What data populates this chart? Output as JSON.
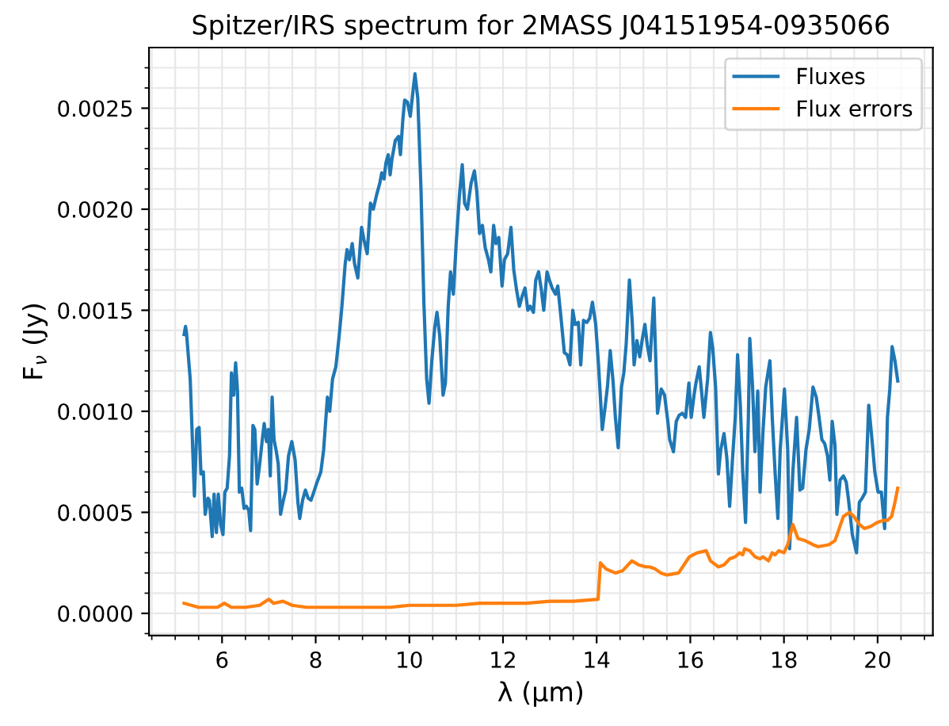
{
  "chart_data": {
    "type": "line",
    "title": "Spitzer/IRS spectrum for 2MASS J04151954-0935066",
    "xlabel": "λ (μm)",
    "ylabel": "F$_{ν}$ (Jy)",
    "xlim": [
      4.44,
      21.18
    ],
    "ylim": [
      -0.00011,
      0.0028
    ],
    "xticks": [
      {
        "value": 4.5,
        "label": null
      },
      {
        "value": 5,
        "label": null
      },
      {
        "value": 5.5,
        "label": null
      },
      6,
      {
        "value": 6.5,
        "label": null
      },
      {
        "value": 7,
        "label": null
      },
      {
        "value": 7.5,
        "label": null
      },
      8,
      {
        "value": 8.5,
        "label": null
      },
      {
        "value": 9,
        "label": null
      },
      {
        "value": 9.5,
        "label": null
      },
      10,
      {
        "value": 10.5,
        "label": null
      },
      {
        "value": 11,
        "label": null
      },
      {
        "value": 11.5,
        "label": null
      },
      12,
      {
        "value": 12.5,
        "label": null
      },
      {
        "value": 13,
        "label": null
      },
      {
        "value": 13.5,
        "label": null
      },
      14,
      {
        "value": 14.5,
        "label": null
      },
      {
        "value": 15,
        "label": null
      },
      {
        "value": 15.5,
        "label": null
      },
      16,
      {
        "value": 16.5,
        "label": null
      },
      {
        "value": 17,
        "label": null
      },
      {
        "value": 17.5,
        "label": null
      },
      18,
      {
        "value": 18.5,
        "label": null
      },
      {
        "value": 19,
        "label": null
      },
      {
        "value": 19.5,
        "label": null
      },
      20,
      {
        "value": 20.5,
        "label": null
      },
      {
        "value": 21,
        "label": null
      }
    ],
    "yticks": [
      {
        "value": -0.0001,
        "label": null
      },
      {
        "value": 0,
        "label": "0.0000"
      },
      {
        "value": 0.0001,
        "label": null
      },
      {
        "value": 0.0002,
        "label": null
      },
      {
        "value": 0.0003,
        "label": null
      },
      {
        "value": 0.0004,
        "label": null
      },
      {
        "value": 0.0005,
        "label": "0.0005"
      },
      {
        "value": 0.0006,
        "label": null
      },
      {
        "value": 0.0007,
        "label": null
      },
      {
        "value": 0.0008,
        "label": null
      },
      {
        "value": 0.0009,
        "label": null
      },
      {
        "value": 0.001,
        "label": "0.0010"
      },
      {
        "value": 0.0011,
        "label": null
      },
      {
        "value": 0.0012,
        "label": null
      },
      {
        "value": 0.0013,
        "label": null
      },
      {
        "value": 0.0014,
        "label": null
      },
      {
        "value": 0.0015,
        "label": "0.0015"
      },
      {
        "value": 0.0016,
        "label": null
      },
      {
        "value": 0.0017,
        "label": null
      },
      {
        "value": 0.0018,
        "label": null
      },
      {
        "value": 0.0019,
        "label": null
      },
      {
        "value": 0.002,
        "label": "0.0020"
      },
      {
        "value": 0.0021,
        "label": null
      },
      {
        "value": 0.0022,
        "label": null
      },
      {
        "value": 0.0023,
        "label": null
      },
      {
        "value": 0.0024,
        "label": null
      },
      {
        "value": 0.0025,
        "label": "0.0025"
      },
      {
        "value": 0.0026,
        "label": null
      },
      {
        "value": 0.0027,
        "label": null
      }
    ],
    "grid": true,
    "legend": "top right",
    "line_style": "solid",
    "series": [
      {
        "name": "Fluxes",
        "color": "#1f77b4",
        "x": [
          5.19,
          5.22,
          5.24,
          5.32,
          5.41,
          5.46,
          5.51,
          5.55,
          5.6,
          5.64,
          5.7,
          5.73,
          5.79,
          5.83,
          5.88,
          5.92,
          5.97,
          6.02,
          6.06,
          6.11,
          6.16,
          6.2,
          6.25,
          6.29,
          6.33,
          6.37,
          6.42,
          6.47,
          6.52,
          6.57,
          6.61,
          6.66,
          6.7,
          6.75,
          6.8,
          6.86,
          6.9,
          6.95,
          6.99,
          7.03,
          7.07,
          7.11,
          7.16,
          7.2,
          7.25,
          7.3,
          7.36,
          7.42,
          7.49,
          7.56,
          7.62,
          7.66,
          7.72,
          7.78,
          7.84,
          7.9,
          7.96,
          8.03,
          8.11,
          8.17,
          8.25,
          8.3,
          8.36,
          8.43,
          8.5,
          8.56,
          8.63,
          8.67,
          8.72,
          8.78,
          8.83,
          8.9,
          8.98,
          9.03,
          9.1,
          9.17,
          9.23,
          9.3,
          9.37,
          9.41,
          9.46,
          9.5,
          9.55,
          9.59,
          9.63,
          9.7,
          9.77,
          9.81,
          9.86,
          9.9,
          9.96,
          10.02,
          10.09,
          10.12,
          10.18,
          10.25,
          10.31,
          10.37,
          10.42,
          10.48,
          10.54,
          10.59,
          10.65,
          10.72,
          10.77,
          10.83,
          10.88,
          10.94,
          11.0,
          11.07,
          11.13,
          11.18,
          11.24,
          11.32,
          11.39,
          11.44,
          11.5,
          11.56,
          11.62,
          11.69,
          11.74,
          11.8,
          11.85,
          11.91,
          11.98,
          12.03,
          12.1,
          12.17,
          12.23,
          12.29,
          12.35,
          12.41,
          12.47,
          12.53,
          12.58,
          12.65,
          12.7,
          12.76,
          12.82,
          12.87,
          12.94,
          12.99,
          13.05,
          13.12,
          13.17,
          13.24,
          13.31,
          13.37,
          13.43,
          13.49,
          13.54,
          13.61,
          13.66,
          13.72,
          13.79,
          13.85,
          13.91,
          13.98,
          14.04,
          14.12,
          14.18,
          14.23,
          14.29,
          14.35,
          14.4,
          14.46,
          14.53,
          14.58,
          14.63,
          14.7,
          14.76,
          14.8,
          14.86,
          14.92,
          14.97,
          15.03,
          15.08,
          15.14,
          15.22,
          15.3,
          15.38,
          15.45,
          15.52,
          15.56,
          15.64,
          15.7,
          15.76,
          15.83,
          15.9,
          15.97,
          16.02,
          16.08,
          16.12,
          16.19,
          16.24,
          16.29,
          16.37,
          16.43,
          16.48,
          16.54,
          16.6,
          16.65,
          16.72,
          16.78,
          16.84,
          16.9,
          16.96,
          17.01,
          17.07,
          17.12,
          17.18,
          17.24,
          17.27,
          17.33,
          17.38,
          17.44,
          17.49,
          17.55,
          17.61,
          17.7,
          17.75,
          17.81,
          17.87,
          17.92,
          18.01,
          18.08,
          18.12,
          18.19,
          18.27,
          18.34,
          18.4,
          18.47,
          18.54,
          18.62,
          18.69,
          18.75,
          18.81,
          18.87,
          18.93,
          18.98,
          19.03,
          19.09,
          19.13,
          19.2,
          19.27,
          19.33,
          19.38,
          19.46,
          19.55,
          19.61,
          19.67,
          19.74,
          19.81,
          19.88,
          19.94,
          20.01,
          20.08,
          20.15,
          20.21,
          20.26,
          20.31,
          20.37,
          20.43
        ],
        "values": [
          0.00138,
          0.00142,
          0.00139,
          0.00116,
          0.00058,
          0.00091,
          0.00092,
          0.00069,
          0.0007,
          0.00049,
          0.00057,
          0.00056,
          0.00038,
          0.00059,
          0.0004,
          0.00059,
          0.00044,
          0.00039,
          0.0006,
          0.00062,
          0.00078,
          0.00119,
          0.00108,
          0.00124,
          0.0011,
          0.0006,
          0.00062,
          0.00052,
          0.00053,
          0.00051,
          0.00041,
          0.00093,
          0.00091,
          0.00064,
          0.00073,
          0.00086,
          0.00094,
          0.00085,
          0.00091,
          0.00068,
          0.00107,
          0.00086,
          0.0008,
          0.00074,
          0.00049,
          0.00055,
          0.00061,
          0.00078,
          0.00085,
          0.00076,
          0.00055,
          0.00047,
          0.00056,
          0.00061,
          0.00057,
          0.00056,
          0.0006,
          0.00065,
          0.0007,
          0.00081,
          0.00107,
          0.001,
          0.00116,
          0.00122,
          0.00137,
          0.00152,
          0.00173,
          0.0018,
          0.00175,
          0.00183,
          0.00173,
          0.00166,
          0.00191,
          0.00185,
          0.00178,
          0.00203,
          0.002,
          0.00207,
          0.00213,
          0.00218,
          0.00215,
          0.00223,
          0.00227,
          0.00217,
          0.00225,
          0.00234,
          0.00236,
          0.00227,
          0.00244,
          0.00254,
          0.00253,
          0.00246,
          0.00261,
          0.00267,
          0.00255,
          0.00209,
          0.00154,
          0.00116,
          0.00104,
          0.00125,
          0.00141,
          0.00149,
          0.00137,
          0.00108,
          0.00114,
          0.00152,
          0.00169,
          0.00158,
          0.00183,
          0.00207,
          0.00222,
          0.00203,
          0.002,
          0.00213,
          0.00219,
          0.00209,
          0.00188,
          0.00192,
          0.00181,
          0.00175,
          0.00169,
          0.00192,
          0.00183,
          0.00186,
          0.00162,
          0.00175,
          0.00178,
          0.00191,
          0.0017,
          0.0016,
          0.00152,
          0.00157,
          0.00161,
          0.0015,
          0.00152,
          0.00149,
          0.00165,
          0.00169,
          0.0016,
          0.0015,
          0.00169,
          0.00165,
          0.00161,
          0.00158,
          0.00162,
          0.00146,
          0.00129,
          0.00128,
          0.00123,
          0.0015,
          0.00143,
          0.00144,
          0.00123,
          0.00145,
          0.00144,
          0.00146,
          0.00154,
          0.00143,
          0.00123,
          0.00091,
          0.00102,
          0.00112,
          0.0013,
          0.00115,
          0.00097,
          0.00082,
          0.00112,
          0.00119,
          0.00133,
          0.00165,
          0.00144,
          0.00123,
          0.00135,
          0.00127,
          0.00135,
          0.00143,
          0.00133,
          0.00125,
          0.00156,
          0.00099,
          0.00111,
          0.00108,
          0.00095,
          0.00086,
          0.0008,
          0.00095,
          0.00098,
          0.00099,
          0.00097,
          0.00114,
          0.00097,
          0.00108,
          0.00114,
          0.00122,
          0.0011,
          0.00097,
          0.00116,
          0.00139,
          0.00131,
          0.00112,
          0.00069,
          0.00081,
          0.00089,
          0.00077,
          0.00053,
          0.00076,
          0.00097,
          0.00128,
          0.00102,
          0.0007,
          0.00045,
          0.00097,
          0.00136,
          0.00112,
          0.0008,
          0.0011,
          0.0006,
          0.00089,
          0.00112,
          0.00125,
          0.00097,
          0.0007,
          0.00047,
          0.00081,
          0.00111,
          0.00081,
          0.00032,
          0.0007,
          0.00097,
          0.00061,
          0.00062,
          0.00081,
          0.00091,
          0.00112,
          0.00107,
          0.00097,
          0.00086,
          0.00084,
          0.00078,
          0.00066,
          0.00095,
          0.00083,
          0.00049,
          0.00066,
          0.00068,
          0.00065,
          0.00056,
          0.00039,
          0.0003,
          0.00055,
          0.00057,
          0.0006,
          0.00103,
          0.00086,
          0.0007,
          0.0006,
          0.0006,
          0.00042,
          0.00097,
          0.00111,
          0.00132,
          0.00125,
          0.00115
        ]
      },
      {
        "name": "Flux errors",
        "color": "#ff7f0e",
        "x": [
          5.19,
          5.5,
          5.9,
          6.05,
          6.2,
          6.5,
          6.8,
          7.0,
          7.1,
          7.3,
          7.5,
          7.8,
          8.2,
          9.0,
          9.6,
          10.0,
          10.5,
          11.0,
          11.5,
          12.0,
          12.5,
          13.0,
          13.5,
          14.03,
          14.08,
          14.2,
          14.4,
          14.55,
          14.75,
          14.9,
          15.05,
          15.13,
          15.25,
          15.37,
          15.5,
          15.75,
          15.98,
          16.15,
          16.34,
          16.43,
          16.6,
          16.72,
          16.84,
          16.96,
          17.05,
          17.12,
          17.16,
          17.27,
          17.38,
          17.49,
          17.55,
          17.67,
          17.75,
          17.81,
          17.89,
          18.0,
          18.08,
          18.19,
          18.3,
          18.45,
          18.62,
          18.73,
          18.96,
          19.09,
          19.18,
          19.27,
          19.4,
          19.49,
          19.61,
          19.72,
          19.85,
          19.99,
          20.12,
          20.21,
          20.3,
          20.37,
          20.43
        ],
        "values": [
          5e-05,
          3e-05,
          3e-05,
          5e-05,
          3e-05,
          3e-05,
          4e-05,
          7e-05,
          5e-05,
          6e-05,
          4e-05,
          3e-05,
          3e-05,
          3e-05,
          3e-05,
          4e-05,
          4e-05,
          4e-05,
          5e-05,
          5e-05,
          5e-05,
          6e-05,
          6e-05,
          7e-05,
          0.00025,
          0.00022,
          0.0002,
          0.00021,
          0.00026,
          0.00024,
          0.00023,
          0.00023,
          0.00022,
          0.0002,
          0.00019,
          0.0002,
          0.00028,
          0.0003,
          0.00031,
          0.00026,
          0.00023,
          0.00024,
          0.00027,
          0.00028,
          0.0003,
          0.00029,
          0.00032,
          0.00031,
          0.00028,
          0.00027,
          0.00028,
          0.00026,
          0.0003,
          0.00029,
          0.00031,
          0.0003,
          0.00034,
          0.00044,
          0.00037,
          0.00036,
          0.00034,
          0.00033,
          0.00034,
          0.00036,
          0.00042,
          0.00048,
          0.0005,
          0.00048,
          0.00044,
          0.00042,
          0.00043,
          0.00045,
          0.00046,
          0.00046,
          0.00048,
          0.00055,
          0.00062
        ]
      }
    ]
  }
}
